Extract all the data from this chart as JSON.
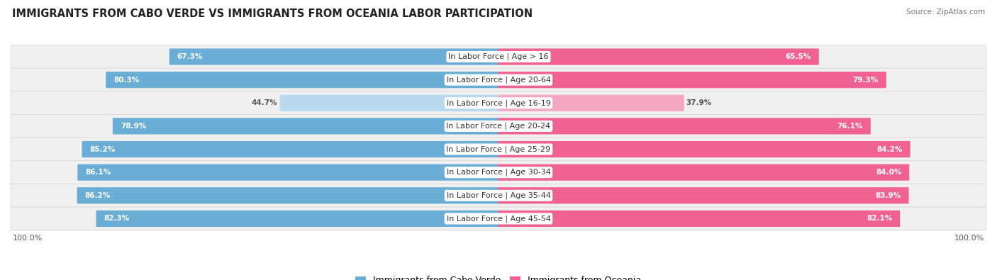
{
  "title": "IMMIGRANTS FROM CABO VERDE VS IMMIGRANTS FROM OCEANIA LABOR PARTICIPATION",
  "source": "Source: ZipAtlas.com",
  "categories": [
    "In Labor Force | Age > 16",
    "In Labor Force | Age 20-64",
    "In Labor Force | Age 16-19",
    "In Labor Force | Age 20-24",
    "In Labor Force | Age 25-29",
    "In Labor Force | Age 30-34",
    "In Labor Force | Age 35-44",
    "In Labor Force | Age 45-54"
  ],
  "cabo_verde": [
    67.3,
    80.3,
    44.7,
    78.9,
    85.2,
    86.1,
    86.2,
    82.3
  ],
  "oceania": [
    65.5,
    79.3,
    37.9,
    76.1,
    84.2,
    84.0,
    83.9,
    82.1
  ],
  "cabo_verde_color": "#6aaed6",
  "cabo_verde_light": "#b8d9ee",
  "oceania_color": "#f06292",
  "oceania_light": "#f4a7c0",
  "row_bg_color": "#f0f0f0",
  "row_border_color": "#d8d8d8",
  "legend_cabo": "Immigrants from Cabo Verde",
  "legend_oceania": "Immigrants from Oceania",
  "max_val": 100.0,
  "title_fontsize": 10.5,
  "label_fontsize": 8.0,
  "value_fontsize": 7.5,
  "axis_label_fontsize": 8.0
}
